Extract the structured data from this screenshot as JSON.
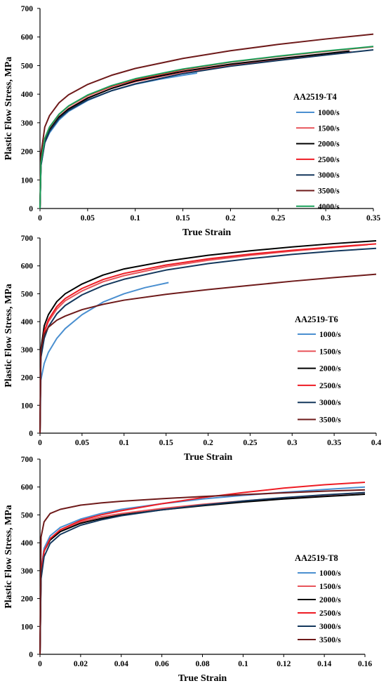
{
  "chart_data": [
    {
      "type": "line",
      "title": "",
      "xlabel": "True Strain",
      "ylabel": "Plastic Flow Stress, MPa",
      "xlim": [
        0,
        0.35
      ],
      "ylim": [
        0,
        700
      ],
      "xticks": [
        0,
        0.05,
        0.1,
        0.15,
        0.2,
        0.25,
        0.3,
        0.35
      ],
      "xtick_labels": [
        "0",
        "0.05",
        "0.1",
        "0.15",
        "0.2",
        "0.25",
        "0.3",
        "0.35"
      ],
      "yticks": [
        0,
        100,
        200,
        300,
        400,
        500,
        600,
        700
      ],
      "ytick_labels": [
        "0",
        "100",
        "200",
        "300",
        "400",
        "500",
        "600",
        "700"
      ],
      "grid": false,
      "legend_title": "AA2519-T4",
      "legend_position": "right",
      "series": [
        {
          "name": "1000/s",
          "color": "#4a8fd0",
          "x": [
            0,
            0.001,
            0.005,
            0.01,
            0.02,
            0.03,
            0.05,
            0.075,
            0.1,
            0.125,
            0.15,
            0.165
          ],
          "y": [
            0,
            150,
            230,
            265,
            310,
            340,
            378,
            412,
            435,
            452,
            466,
            474
          ]
        },
        {
          "name": "1500/s",
          "color": "#e8545a",
          "x": [
            0,
            0.001,
            0.005,
            0.01,
            0.02,
            0.03,
            0.05,
            0.075,
            0.1,
            0.15,
            0.2,
            0.25,
            0.3,
            0.327
          ],
          "y": [
            0,
            160,
            240,
            278,
            322,
            350,
            388,
            420,
            444,
            477,
            501,
            520,
            538,
            548
          ]
        },
        {
          "name": "2000/s",
          "color": "#000000",
          "x": [
            0,
            0.001,
            0.005,
            0.01,
            0.02,
            0.03,
            0.05,
            0.075,
            0.1,
            0.15,
            0.2,
            0.25,
            0.3,
            0.325
          ],
          "y": [
            0,
            155,
            235,
            275,
            320,
            348,
            386,
            420,
            446,
            480,
            505,
            524,
            542,
            551
          ]
        },
        {
          "name": "2500/s",
          "color": "#ee1c24",
          "x": [
            0,
            0.001,
            0.005,
            0.01,
            0.02,
            0.03,
            0.05,
            0.075,
            0.1,
            0.15,
            0.2,
            0.25,
            0.3,
            0.35
          ],
          "y": [
            0,
            165,
            245,
            285,
            330,
            358,
            395,
            427,
            451,
            486,
            512,
            532,
            550,
            566
          ]
        },
        {
          "name": "3000/s",
          "color": "#13375c",
          "x": [
            0,
            0.001,
            0.005,
            0.01,
            0.02,
            0.03,
            0.05,
            0.075,
            0.1,
            0.15,
            0.2,
            0.25,
            0.3,
            0.35
          ],
          "y": [
            0,
            150,
            230,
            270,
            315,
            343,
            380,
            412,
            436,
            472,
            498,
            518,
            537,
            555
          ]
        },
        {
          "name": "3500/s",
          "color": "#6e1a1a",
          "x": [
            0,
            0.001,
            0.005,
            0.01,
            0.02,
            0.03,
            0.05,
            0.075,
            0.1,
            0.15,
            0.2,
            0.25,
            0.3,
            0.35
          ],
          "y": [
            0,
            190,
            285,
            325,
            370,
            398,
            434,
            466,
            490,
            525,
            552,
            574,
            593,
            610
          ]
        },
        {
          "name": "4000/s",
          "color": "#1aa05a",
          "x": [
            0,
            0.001,
            0.005,
            0.01,
            0.02,
            0.03,
            0.05,
            0.075,
            0.1,
            0.15,
            0.2,
            0.25,
            0.3,
            0.35
          ],
          "y": [
            0,
            160,
            245,
            285,
            330,
            359,
            397,
            430,
            454,
            488,
            513,
            533,
            551,
            567
          ]
        }
      ]
    },
    {
      "type": "line",
      "title": "",
      "xlabel": "True Strain",
      "ylabel": "Plastic Flow Stress, MPa",
      "xlim": [
        0,
        0.4
      ],
      "ylim": [
        0,
        700
      ],
      "xticks": [
        0,
        0.05,
        0.1,
        0.15,
        0.2,
        0.25,
        0.3,
        0.35,
        0.4
      ],
      "xtick_labels": [
        "0",
        "0.05",
        "0.1",
        "0.15",
        "0.2",
        "0.25",
        "0.3",
        "0.35",
        "0.4"
      ],
      "yticks": [
        0,
        100,
        200,
        300,
        400,
        500,
        600,
        700
      ],
      "ytick_labels": [
        "0",
        "100",
        "200",
        "300",
        "400",
        "500",
        "600",
        "700"
      ],
      "grid": false,
      "legend_title": "AA2519-T6",
      "legend_position": "right",
      "series": [
        {
          "name": "1000/s",
          "color": "#4a8fd0",
          "x": [
            0,
            0.001,
            0.005,
            0.01,
            0.02,
            0.03,
            0.05,
            0.075,
            0.1,
            0.125,
            0.153
          ],
          "y": [
            0,
            190,
            250,
            290,
            340,
            375,
            425,
            470,
            500,
            522,
            540
          ]
        },
        {
          "name": "1500/s",
          "color": "#e8545a",
          "x": [
            0,
            0.001,
            0.005,
            0.01,
            0.02,
            0.03,
            0.05,
            0.075,
            0.1,
            0.15,
            0.2,
            0.25,
            0.3,
            0.35,
            0.39
          ],
          "y": [
            0,
            280,
            360,
            400,
            445,
            475,
            510,
            543,
            565,
            597,
            620,
            638,
            653,
            666,
            676
          ]
        },
        {
          "name": "2000/s",
          "color": "#000000",
          "x": [
            0,
            0.001,
            0.005,
            0.01,
            0.02,
            0.03,
            0.05,
            0.075,
            0.1,
            0.15,
            0.2,
            0.25,
            0.3,
            0.35,
            0.4
          ],
          "y": [
            0,
            300,
            385,
            425,
            472,
            500,
            535,
            567,
            589,
            617,
            638,
            654,
            668,
            680,
            690
          ]
        },
        {
          "name": "2500/s",
          "color": "#ee1c24",
          "x": [
            0,
            0.001,
            0.005,
            0.01,
            0.02,
            0.03,
            0.05,
            0.075,
            0.1,
            0.15,
            0.2,
            0.25,
            0.3,
            0.35,
            0.4
          ],
          "y": [
            0,
            285,
            365,
            407,
            454,
            483,
            519,
            551,
            573,
            603,
            625,
            642,
            656,
            668,
            679
          ]
        },
        {
          "name": "3000/s",
          "color": "#13375c",
          "x": [
            0,
            0.001,
            0.005,
            0.01,
            0.02,
            0.03,
            0.05,
            0.075,
            0.1,
            0.15,
            0.2,
            0.25,
            0.3,
            0.35,
            0.4
          ],
          "y": [
            0,
            270,
            340,
            382,
            428,
            458,
            496,
            529,
            552,
            585,
            608,
            626,
            641,
            653,
            663
          ]
        },
        {
          "name": "3500/s",
          "color": "#6e1a1a",
          "x": [
            0,
            0.001,
            0.005,
            0.01,
            0.02,
            0.03,
            0.05,
            0.075,
            0.1,
            0.15,
            0.2,
            0.25,
            0.3,
            0.35,
            0.4
          ],
          "y": [
            0,
            300,
            355,
            380,
            405,
            420,
            443,
            462,
            477,
            498,
            515,
            530,
            545,
            558,
            570
          ]
        }
      ]
    },
    {
      "type": "line",
      "title": "",
      "xlabel": "True Strain",
      "ylabel": "Plastic Flow Stress, MPa",
      "xlim": [
        0,
        0.16
      ],
      "ylim": [
        0,
        700
      ],
      "xticks": [
        0,
        0.02,
        0.04,
        0.06,
        0.08,
        0.1,
        0.12,
        0.14,
        0.16
      ],
      "xtick_labels": [
        "0",
        "0.02",
        "0.04",
        "0.06",
        "0.08",
        "0.1",
        "0.12",
        "0.14",
        "0.16"
      ],
      "yticks": [
        0,
        100,
        200,
        300,
        400,
        500,
        600,
        700
      ],
      "ytick_labels": [
        "0",
        "100",
        "200",
        "300",
        "400",
        "500",
        "600",
        "700"
      ],
      "grid": false,
      "legend_title": "AA2519-T8",
      "legend_position": "right",
      "series": [
        {
          "name": "1000/s",
          "color": "#4a8fd0",
          "x": [
            0,
            0.0005,
            0.002,
            0.005,
            0.01,
            0.02,
            0.03,
            0.04,
            0.06,
            0.08,
            0.1,
            0.12,
            0.14,
            0.16
          ],
          "y": [
            0,
            300,
            380,
            425,
            455,
            485,
            505,
            520,
            540,
            557,
            570,
            581,
            591,
            600
          ]
        },
        {
          "name": "1500/s",
          "color": "#e8545a",
          "x": [
            0,
            0.0005,
            0.002,
            0.005,
            0.01,
            0.02,
            0.03,
            0.04,
            0.06,
            0.08,
            0.1,
            0.12,
            0.14,
            0.16
          ],
          "y": [
            0,
            290,
            370,
            415,
            445,
            475,
            493,
            505,
            523,
            538,
            550,
            561,
            571,
            580
          ]
        },
        {
          "name": "2000/s",
          "color": "#000000",
          "x": [
            0,
            0.0005,
            0.002,
            0.005,
            0.01,
            0.02,
            0.03,
            0.04,
            0.06,
            0.08,
            0.1,
            0.12,
            0.14,
            0.16
          ],
          "y": [
            0,
            290,
            370,
            410,
            440,
            470,
            487,
            500,
            518,
            533,
            546,
            557,
            566,
            574
          ]
        },
        {
          "name": "2500/s",
          "color": "#ee1c24",
          "x": [
            0,
            0.0005,
            0.002,
            0.005,
            0.01,
            0.02,
            0.03,
            0.04,
            0.06,
            0.08,
            0.1,
            0.12,
            0.14,
            0.16
          ],
          "y": [
            0,
            295,
            370,
            415,
            447,
            480,
            500,
            515,
            540,
            562,
            580,
            596,
            608,
            617
          ]
        },
        {
          "name": "3000/s",
          "color": "#13375c",
          "x": [
            0,
            0.0005,
            0.002,
            0.005,
            0.01,
            0.02,
            0.03,
            0.04,
            0.06,
            0.08,
            0.1,
            0.12,
            0.14,
            0.16
          ],
          "y": [
            0,
            270,
            350,
            398,
            430,
            463,
            482,
            497,
            518,
            535,
            550,
            562,
            572,
            580
          ]
        },
        {
          "name": "3500/s",
          "color": "#6e1a1a",
          "x": [
            0,
            0.0005,
            0.002,
            0.005,
            0.01,
            0.02,
            0.03,
            0.04,
            0.06,
            0.08,
            0.1,
            0.12,
            0.14,
            0.16
          ],
          "y": [
            0,
            420,
            475,
            505,
            520,
            535,
            543,
            549,
            558,
            566,
            573,
            579,
            585,
            590
          ]
        }
      ]
    }
  ]
}
